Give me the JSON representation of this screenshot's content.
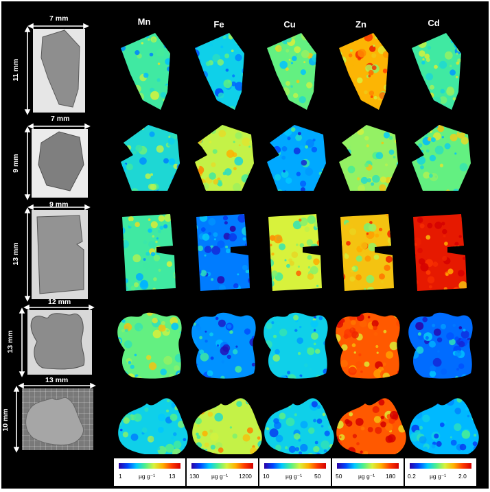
{
  "dims": {
    "r1w": "7 mm",
    "r1h": "11 mm",
    "r2w": "7 mm",
    "r2h": "9 mm",
    "r3w": "9 mm",
    "r3h": "13 mm",
    "r4w": "12 mm",
    "r4h": "13 mm",
    "r5w": "13 mm",
    "r5h": "10 mm"
  },
  "elements": [
    "Mn",
    "Fe",
    "Cu",
    "Zn",
    "Cd"
  ],
  "scales": [
    {
      "min": "1",
      "unit": "µg g⁻¹",
      "max": "13"
    },
    {
      "min": "130",
      "unit": "µg g⁻¹",
      "max": "1200"
    },
    {
      "min": "10",
      "unit": "µg g⁻¹",
      "max": "50"
    },
    {
      "min": "50",
      "unit": "µg g⁻¹",
      "max": "180"
    },
    {
      "min": "0.2",
      "unit": "µg g⁻¹",
      "max": "2.0"
    }
  ],
  "maps": [
    [
      {
        "element": "Mn",
        "tone": "green-cyan",
        "level": 0.45
      },
      {
        "element": "Fe",
        "tone": "blue-yellow mottled",
        "level": 0.35
      },
      {
        "element": "Cu",
        "tone": "green-yellow",
        "level": 0.5
      },
      {
        "element": "Zn",
        "tone": "red-yellow",
        "level": 0.75
      },
      {
        "element": "Cd",
        "tone": "green speckled",
        "level": 0.45
      }
    ],
    [
      {
        "element": "Mn",
        "tone": "cyan-blue",
        "level": 0.38
      },
      {
        "element": "Fe",
        "tone": "yellow-green",
        "level": 0.6
      },
      {
        "element": "Cu",
        "tone": "blue",
        "level": 0.28
      },
      {
        "element": "Zn",
        "tone": "yellow-green",
        "level": 0.55
      },
      {
        "element": "Cd",
        "tone": "green-yellow speckled",
        "level": 0.5
      }
    ],
    [
      {
        "element": "Mn",
        "tone": "green",
        "level": 0.45
      },
      {
        "element": "Fe",
        "tone": "blue",
        "level": 0.22
      },
      {
        "element": "Cu",
        "tone": "yellow-green",
        "level": 0.62
      },
      {
        "element": "Zn",
        "tone": "orange-yellow",
        "level": 0.72
      },
      {
        "element": "Cd",
        "tone": "red",
        "level": 0.95
      }
    ],
    [
      {
        "element": "Mn",
        "tone": "green-yellow",
        "level": 0.5
      },
      {
        "element": "Fe",
        "tone": "blue",
        "level": 0.25
      },
      {
        "element": "Cu",
        "tone": "cyan-blue",
        "level": 0.35
      },
      {
        "element": "Zn",
        "tone": "red-orange",
        "level": 0.85
      },
      {
        "element": "Cd",
        "tone": "sparse cyan",
        "level": 0.2
      }
    ],
    [
      {
        "element": "Mn",
        "tone": "cyan-blue",
        "level": 0.35
      },
      {
        "element": "Fe",
        "tone": "green-yellow",
        "level": 0.6
      },
      {
        "element": "Cu",
        "tone": "cyan-blue",
        "level": 0.35
      },
      {
        "element": "Zn",
        "tone": "red-orange",
        "level": 0.85
      },
      {
        "element": "Cd",
        "tone": "green speckled",
        "level": 0.3
      }
    ]
  ]
}
